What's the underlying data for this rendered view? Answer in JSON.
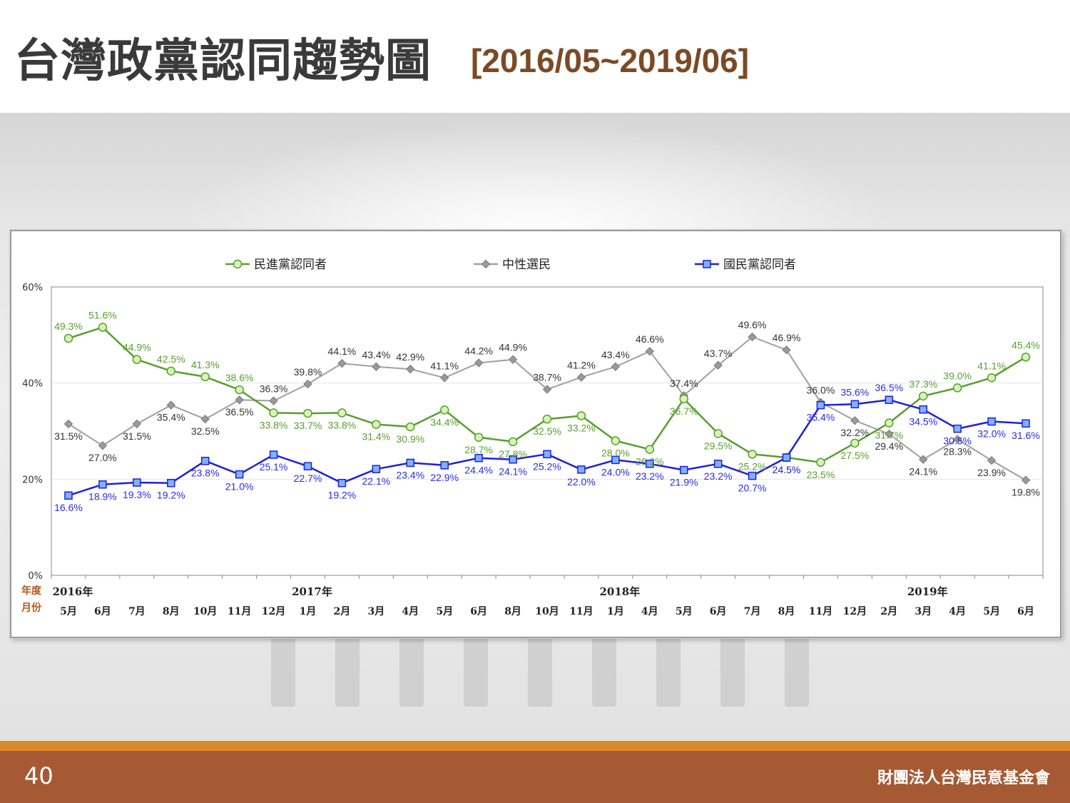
{
  "slide": {
    "title": "台灣政黨認同趨勢圖",
    "subtitle": "[2016/05~2019/06]",
    "page_number": "40",
    "organization": "財團法人台灣民意基金會"
  },
  "colors": {
    "dpp": "#5a9e2f",
    "dpp_marker_fill": "#d6f5b8",
    "neutral": "#a0a0a0",
    "kmt": "#1f1fe0",
    "kmt_marker_fill": "#7fb3ff",
    "footer": "#a65a33",
    "footer_strip": "#d9892a",
    "title": "#3a3a3a",
    "subtitle": "#7b4a24"
  },
  "chart_data": {
    "type": "line",
    "ylim": [
      0,
      60
    ],
    "yticks": [
      "0%",
      "20%",
      "40%",
      "60%"
    ],
    "row_labels": {
      "year": "年度",
      "month": "月份"
    },
    "years": [
      {
        "label": "2016年",
        "at": 0
      },
      {
        "label": "2017年",
        "at": 7
      },
      {
        "label": "2018年",
        "at": 16
      },
      {
        "label": "2019年",
        "at": 25
      }
    ],
    "categories": [
      "5月",
      "6月",
      "7月",
      "8月",
      "10月",
      "11月",
      "12月",
      "1月",
      "2月",
      "3月",
      "4月",
      "5月",
      "6月",
      "8月",
      "10月",
      "11月",
      "1月",
      "4月",
      "5月",
      "6月",
      "7月",
      "8月",
      "11月",
      "12月",
      "2月",
      "3月",
      "4月",
      "5月",
      "6月"
    ],
    "legend_position": "top",
    "series": [
      {
        "name": "民進黨認同者",
        "color": "#5a9e2f",
        "marker": "circle",
        "values": [
          49.3,
          51.6,
          44.9,
          42.5,
          41.3,
          38.6,
          33.8,
          33.7,
          33.8,
          31.4,
          30.9,
          34.4,
          28.7,
          27.8,
          32.5,
          33.2,
          28.0,
          26.2,
          36.7,
          29.5,
          25.2,
          24.5,
          23.5,
          27.5,
          31.7,
          37.3,
          39.0,
          41.1,
          45.4
        ],
        "labels": [
          "49.3%",
          "51.6%",
          "44.9%",
          "42.5%",
          "41.3%",
          "38.6%",
          "33.8%",
          "33.7%",
          "33.8%",
          "31.4%",
          "30.9%",
          "34.4%",
          "28.7%",
          "27.8%",
          "32.5%",
          "33.2%",
          "28.0%",
          "26.2%",
          "36.7%",
          "29.5%",
          "25.2%",
          "24.5%",
          "23.5%",
          "27.5%",
          "31.7%",
          "37.3%",
          "39.0%",
          "41.1%",
          "45.4%"
        ]
      },
      {
        "name": "中性選民",
        "color": "#a0a0a0",
        "marker": "diamond",
        "values": [
          31.5,
          27.0,
          31.5,
          35.4,
          32.5,
          36.5,
          36.3,
          39.8,
          44.1,
          43.4,
          42.9,
          41.1,
          44.2,
          44.9,
          38.7,
          41.2,
          43.4,
          46.6,
          37.4,
          43.7,
          49.6,
          46.9,
          36.0,
          32.2,
          29.4,
          24.1,
          28.3,
          23.9,
          19.8
        ],
        "labels": [
          "31.5%",
          "27.0%",
          "31.5%",
          "35.4%",
          "32.5%",
          "36.5%",
          "36.3%",
          "39.8%",
          "44.1%",
          "43.4%",
          "42.9%",
          "41.1%",
          "44.2%",
          "44.9%",
          "38.7%",
          "41.2%",
          "43.4%",
          "46.6%",
          "37.4%",
          "43.7%",
          "49.6%",
          "46.9%",
          "36.0%",
          "32.2%",
          "29.4%",
          "24.1%",
          "28.3%",
          "23.9%",
          "19.8%"
        ]
      },
      {
        "name": "國民黨認同者",
        "color": "#1f1fe0",
        "marker": "square",
        "values": [
          16.6,
          18.9,
          19.3,
          19.2,
          23.8,
          21.0,
          25.1,
          22.7,
          19.2,
          22.1,
          23.4,
          22.9,
          24.4,
          24.1,
          25.2,
          22.0,
          24.0,
          23.2,
          21.9,
          23.2,
          20.7,
          24.5,
          35.4,
          35.6,
          36.5,
          34.5,
          30.5,
          32.0,
          31.6
        ],
        "labels": [
          "16.6%",
          "18.9%",
          "19.3%",
          "19.2%",
          "23.8%",
          "21.0%",
          "25.1%",
          "22.7%",
          "19.2%",
          "22.1%",
          "23.4%",
          "22.9%",
          "24.4%",
          "24.1%",
          "25.2%",
          "22.0%",
          "24.0%",
          "23.2%",
          "21.9%",
          "23.2%",
          "20.7%",
          "24.5%",
          "35.4%",
          "35.6%",
          "36.5%",
          "34.5%",
          "30.5%",
          "32.0%",
          "31.6%"
        ]
      }
    ]
  }
}
